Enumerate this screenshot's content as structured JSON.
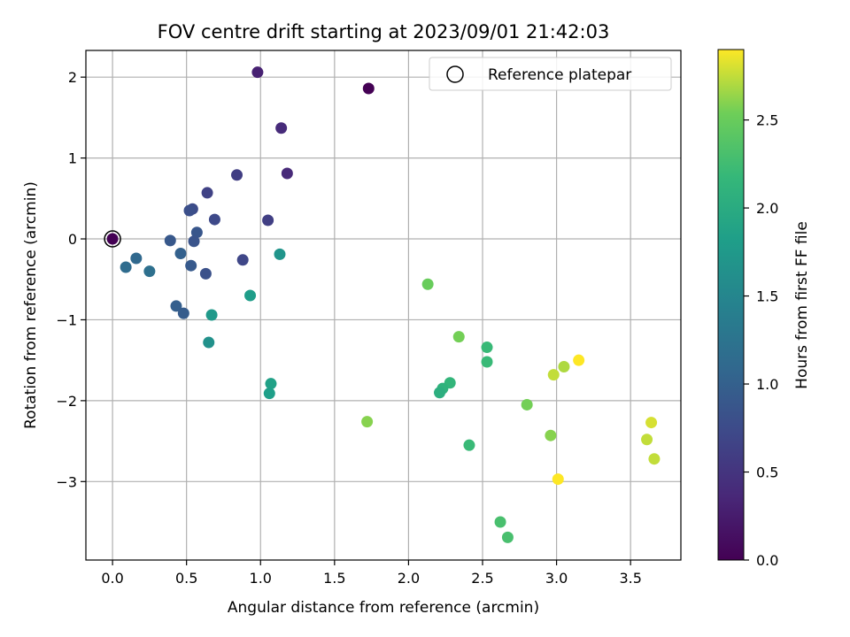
{
  "chart_data": {
    "type": "scatter",
    "title": "FOV centre drift starting at 2023/09/01 21:42:03",
    "xlabel": "Angular distance from reference (arcmin)",
    "ylabel": "Rotation from reference (arcmin)",
    "xlim": [
      -0.18,
      3.84
    ],
    "ylim": [
      -3.97,
      2.33
    ],
    "grid": true,
    "xticks": [
      0.0,
      0.5,
      1.0,
      1.5,
      2.0,
      2.5,
      3.0,
      3.5
    ],
    "xtick_labels": [
      "0.0",
      "0.5",
      "1.0",
      "1.5",
      "2.0",
      "2.5",
      "3.0",
      "3.5"
    ],
    "yticks": [
      -3,
      -2,
      -1,
      0,
      1,
      2
    ],
    "ytick_labels": [
      "−3",
      "−2",
      "−1",
      "0",
      "1",
      "2"
    ],
    "legend": {
      "placement": "top-right",
      "entries": [
        "Reference platepar"
      ]
    },
    "reference_point": {
      "x": 0.0,
      "y": 0.0
    },
    "colorbar": {
      "label": "Hours from first FF file",
      "colormap": "viridis",
      "range": [
        0.0,
        2.9
      ],
      "ticks": [
        0.0,
        0.5,
        1.0,
        1.5,
        2.0,
        2.5
      ],
      "tick_labels": [
        "0.0",
        "0.5",
        "1.0",
        "1.5",
        "2.0",
        "2.5"
      ]
    },
    "series": [
      {
        "points": [
          {
            "x": 0.0,
            "y": 0.0,
            "t": 0.0
          },
          {
            "x": 1.73,
            "y": 1.86,
            "t": 0.0
          },
          {
            "x": 0.98,
            "y": 2.06,
            "t": 0.3
          },
          {
            "x": 1.14,
            "y": 1.37,
            "t": 0.4
          },
          {
            "x": 1.18,
            "y": 0.81,
            "t": 0.38
          },
          {
            "x": 0.84,
            "y": 0.79,
            "t": 0.6
          },
          {
            "x": 0.64,
            "y": 0.57,
            "t": 0.65
          },
          {
            "x": 0.54,
            "y": 0.37,
            "t": 0.75
          },
          {
            "x": 0.52,
            "y": 0.35,
            "t": 0.8
          },
          {
            "x": 0.69,
            "y": 0.24,
            "t": 0.72
          },
          {
            "x": 1.05,
            "y": 0.23,
            "t": 0.62
          },
          {
            "x": 0.57,
            "y": 0.08,
            "t": 0.88
          },
          {
            "x": 0.39,
            "y": -0.02,
            "t": 0.9
          },
          {
            "x": 0.55,
            "y": -0.03,
            "t": 0.85
          },
          {
            "x": 0.16,
            "y": -0.24,
            "t": 1.1
          },
          {
            "x": 0.46,
            "y": -0.18,
            "t": 1.0
          },
          {
            "x": 0.88,
            "y": -0.26,
            "t": 0.7
          },
          {
            "x": 0.09,
            "y": -0.35,
            "t": 1.15
          },
          {
            "x": 0.25,
            "y": -0.4,
            "t": 1.2
          },
          {
            "x": 0.53,
            "y": -0.33,
            "t": 0.92
          },
          {
            "x": 0.63,
            "y": -0.43,
            "t": 0.82
          },
          {
            "x": 1.13,
            "y": -0.19,
            "t": 1.7
          },
          {
            "x": 0.43,
            "y": -0.83,
            "t": 0.98
          },
          {
            "x": 0.48,
            "y": -0.92,
            "t": 0.95
          },
          {
            "x": 0.93,
            "y": -0.7,
            "t": 1.8
          },
          {
            "x": 0.67,
            "y": -0.94,
            "t": 1.75
          },
          {
            "x": 0.65,
            "y": -1.28,
            "t": 1.65
          },
          {
            "x": 1.07,
            "y": -1.79,
            "t": 1.85
          },
          {
            "x": 1.06,
            "y": -1.91,
            "t": 1.82
          },
          {
            "x": 1.72,
            "y": -2.26,
            "t": 2.6
          },
          {
            "x": 2.13,
            "y": -0.56,
            "t": 2.5
          },
          {
            "x": 2.34,
            "y": -1.21,
            "t": 2.55
          },
          {
            "x": 2.53,
            "y": -1.34,
            "t": 2.2
          },
          {
            "x": 2.53,
            "y": -1.52,
            "t": 2.2
          },
          {
            "x": 2.28,
            "y": -1.78,
            "t": 2.15
          },
          {
            "x": 2.23,
            "y": -1.85,
            "t": 2.1
          },
          {
            "x": 2.21,
            "y": -1.9,
            "t": 2.05
          },
          {
            "x": 2.41,
            "y": -2.55,
            "t": 2.2
          },
          {
            "x": 2.8,
            "y": -2.05,
            "t": 2.55
          },
          {
            "x": 2.96,
            "y": -2.43,
            "t": 2.6
          },
          {
            "x": 2.98,
            "y": -1.68,
            "t": 2.75
          },
          {
            "x": 3.05,
            "y": -1.58,
            "t": 2.7
          },
          {
            "x": 3.15,
            "y": -1.5,
            "t": 2.9
          },
          {
            "x": 3.01,
            "y": -2.97,
            "t": 2.9
          },
          {
            "x": 2.62,
            "y": -3.5,
            "t": 2.3
          },
          {
            "x": 2.67,
            "y": -3.69,
            "t": 2.3
          },
          {
            "x": 3.61,
            "y": -2.48,
            "t": 2.75
          },
          {
            "x": 3.64,
            "y": -2.27,
            "t": 2.8
          },
          {
            "x": 3.66,
            "y": -2.72,
            "t": 2.75
          }
        ]
      }
    ]
  }
}
